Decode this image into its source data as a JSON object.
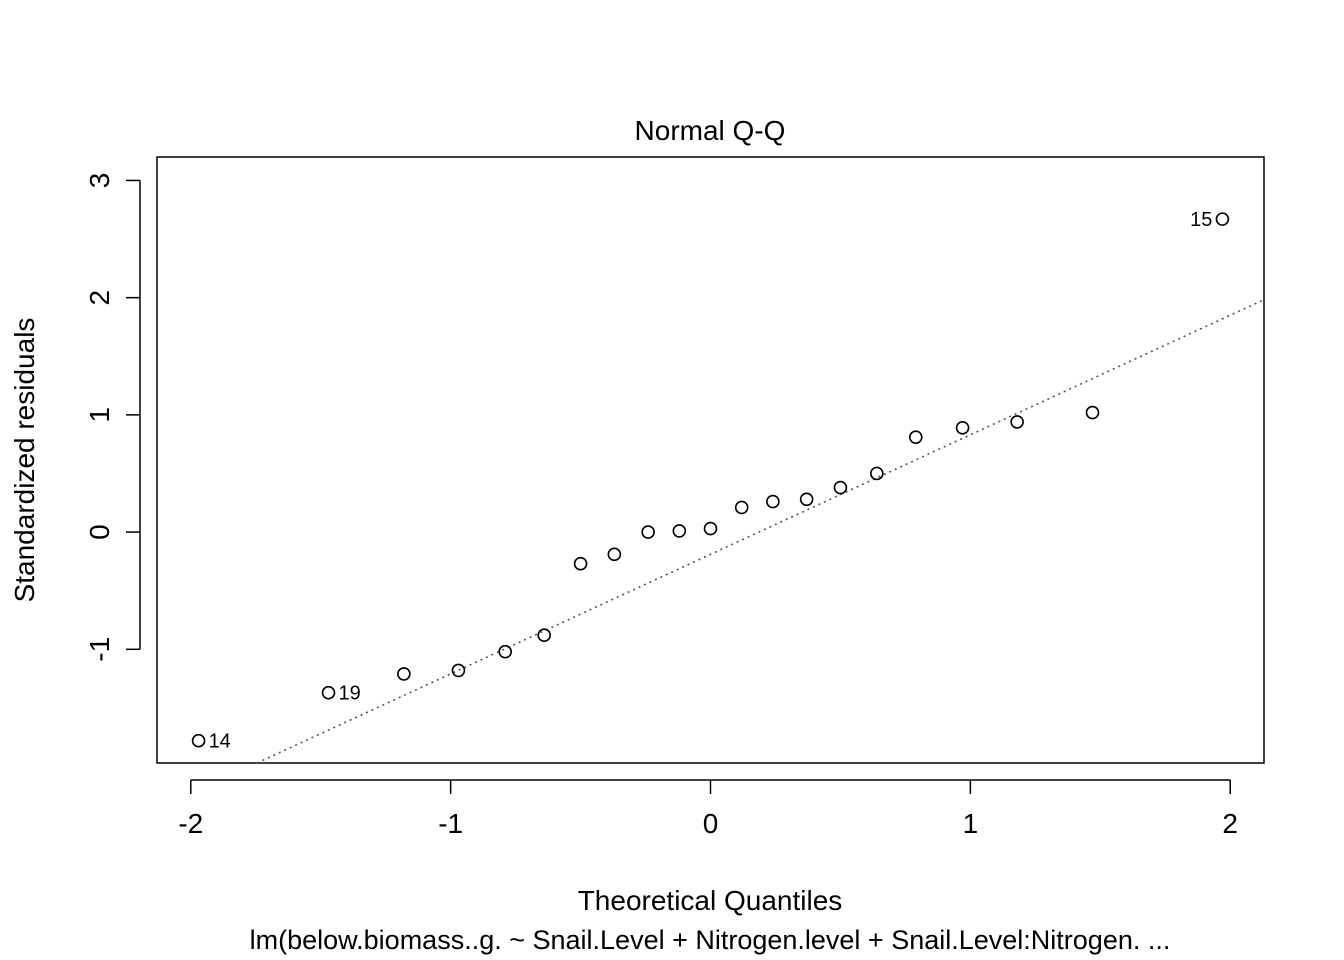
{
  "chart_data": {
    "type": "scatter",
    "title": "Normal Q-Q",
    "xlabel": "Theoretical Quantiles",
    "ylabel": "Standardized residuals",
    "subtitle": "lm(below.biomass..g. ~ Snail.Level + Nitrogen.level + Snail.Level:Nitrogen. ...",
    "xlim": [
      -2.13,
      2.13
    ],
    "ylim": [
      -1.97,
      3.2
    ],
    "xticks": [
      -2,
      -1,
      0,
      1,
      2
    ],
    "xtick_labels": [
      "-2",
      "-1",
      "0",
      "1",
      "2"
    ],
    "yticks": [
      -1,
      0,
      1,
      2,
      3
    ],
    "ytick_labels": [
      "-1",
      "0",
      "1",
      "2",
      "3"
    ],
    "grid": false,
    "points": [
      {
        "x": -1.97,
        "y": -1.78,
        "label": "14"
      },
      {
        "x": -1.47,
        "y": -1.37,
        "label": "19"
      },
      {
        "x": -1.18,
        "y": -1.21
      },
      {
        "x": -0.97,
        "y": -1.18
      },
      {
        "x": -0.79,
        "y": -1.02
      },
      {
        "x": -0.64,
        "y": -0.88
      },
      {
        "x": -0.5,
        "y": -0.27
      },
      {
        "x": -0.37,
        "y": -0.19
      },
      {
        "x": -0.24,
        "y": 0.0
      },
      {
        "x": -0.12,
        "y": 0.01
      },
      {
        "x": 0.0,
        "y": 0.03
      },
      {
        "x": 0.12,
        "y": 0.21
      },
      {
        "x": 0.24,
        "y": 0.26
      },
      {
        "x": 0.37,
        "y": 0.28
      },
      {
        "x": 0.5,
        "y": 0.38
      },
      {
        "x": 0.64,
        "y": 0.5
      },
      {
        "x": 0.79,
        "y": 0.81
      },
      {
        "x": 0.97,
        "y": 0.89
      },
      {
        "x": 1.18,
        "y": 0.94
      },
      {
        "x": 1.47,
        "y": 1.02
      },
      {
        "x": 1.97,
        "y": 2.67,
        "label": "15"
      }
    ],
    "reference_line": {
      "intercept": -0.19,
      "slope": 1.02,
      "style": "dotted",
      "color": "#555555"
    }
  }
}
